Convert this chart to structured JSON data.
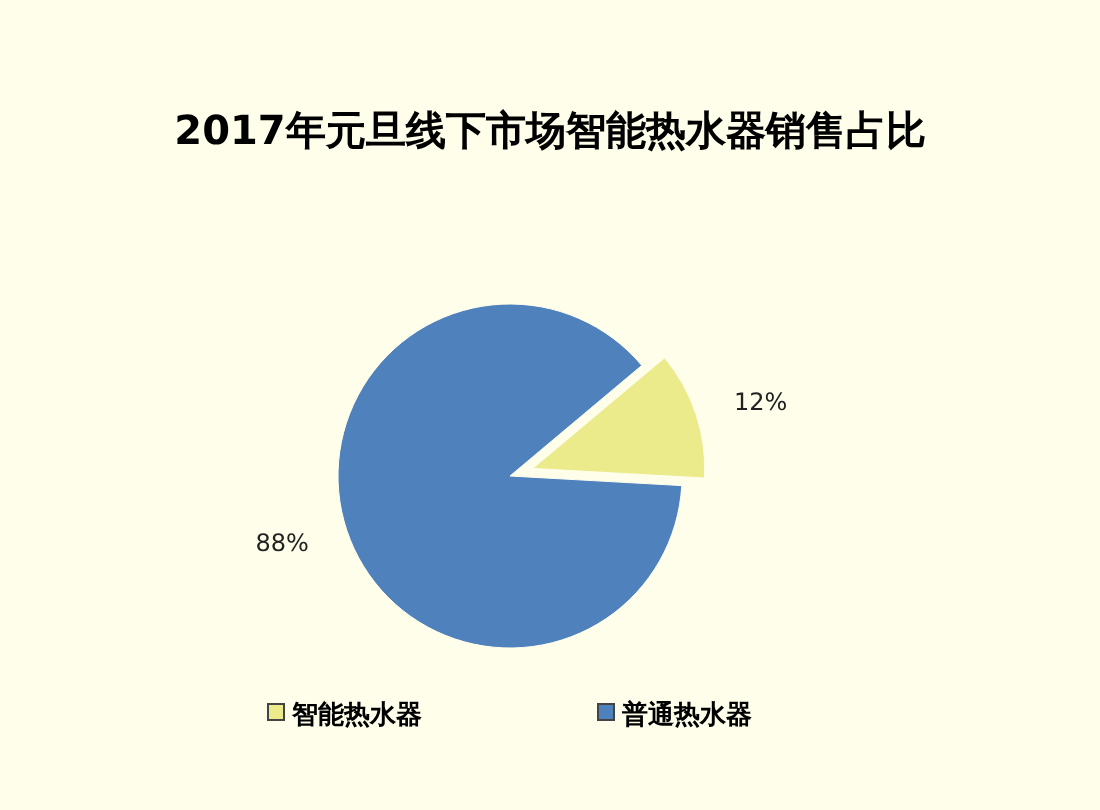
{
  "chart_data": {
    "type": "pie",
    "title": "2017年元旦线下市场智能热水器销售占比",
    "categories": [
      "智能热水器",
      "普通热水器"
    ],
    "values": [
      12,
      88
    ],
    "colors": [
      "#ebeb8c",
      "#4f81bd"
    ],
    "value_labels": [
      "12%",
      "88%"
    ],
    "legend": "bottom"
  }
}
